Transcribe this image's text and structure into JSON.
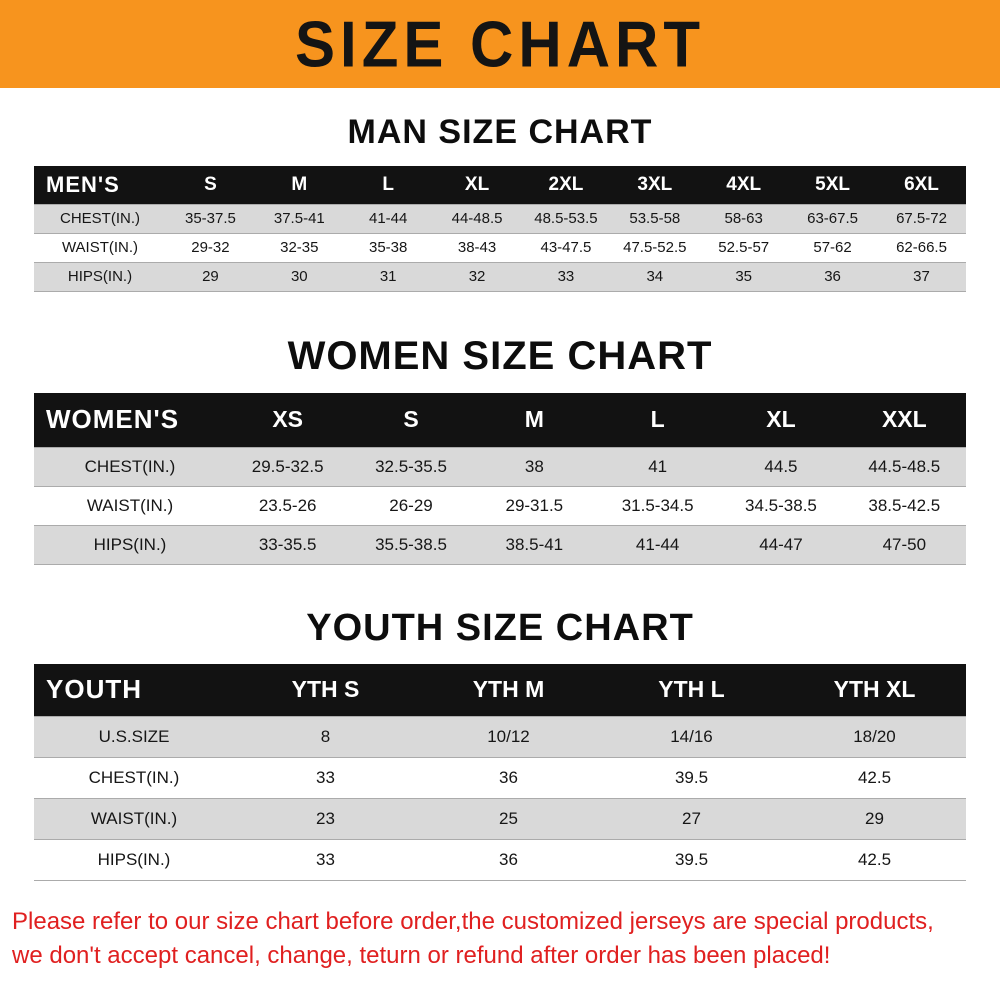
{
  "colors": {
    "banner-bg": "#F7941E",
    "header-bg": "#121212",
    "stripe": "#d9d9d9",
    "footer-red": "#e02020"
  },
  "banner": {
    "title": "SIZE CHART"
  },
  "chart_data": [
    {
      "type": "table",
      "title": "MAN SIZE CHART",
      "corner_label": "MEN'S",
      "columns": [
        "S",
        "M",
        "L",
        "XL",
        "2XL",
        "3XL",
        "4XL",
        "5XL",
        "6XL"
      ],
      "rows": [
        {
          "label": "CHEST(IN.)",
          "values": [
            "35-37.5",
            "37.5-41",
            "41-44",
            "44-48.5",
            "48.5-53.5",
            "53.5-58",
            "58-63",
            "63-67.5",
            "67.5-72"
          ]
        },
        {
          "label": "WAIST(IN.)",
          "values": [
            "29-32",
            "32-35",
            "35-38",
            "38-43",
            "43-47.5",
            "47.5-52.5",
            "52.5-57",
            "57-62",
            "62-66.5"
          ]
        },
        {
          "label": "HIPS(IN.)",
          "values": [
            "29",
            "30",
            "31",
            "32",
            "33",
            "34",
            "35",
            "36",
            "37"
          ]
        }
      ]
    },
    {
      "type": "table",
      "title": "WOMEN SIZE CHART",
      "corner_label": "WOMEN'S",
      "columns": [
        "XS",
        "S",
        "M",
        "L",
        "XL",
        "XXL"
      ],
      "rows": [
        {
          "label": "CHEST(IN.)",
          "values": [
            "29.5-32.5",
            "32.5-35.5",
            "38",
            "41",
            "44.5",
            "44.5-48.5"
          ]
        },
        {
          "label": "WAIST(IN.)",
          "values": [
            "23.5-26",
            "26-29",
            "29-31.5",
            "31.5-34.5",
            "34.5-38.5",
            "38.5-42.5"
          ]
        },
        {
          "label": "HIPS(IN.)",
          "values": [
            "33-35.5",
            "35.5-38.5",
            "38.5-41",
            "41-44",
            "44-47",
            "47-50"
          ]
        }
      ]
    },
    {
      "type": "table",
      "title": "YOUTH SIZE CHART",
      "corner_label": "YOUTH",
      "columns": [
        "YTH S",
        "YTH M",
        "YTH L",
        "YTH XL"
      ],
      "rows": [
        {
          "label": "U.S.SIZE",
          "values": [
            "8",
            "10/12",
            "14/16",
            "18/20"
          ]
        },
        {
          "label": "CHEST(IN.)",
          "values": [
            "33",
            "36",
            "39.5",
            "42.5"
          ]
        },
        {
          "label": "WAIST(IN.)",
          "values": [
            "23",
            "25",
            "27",
            "29"
          ]
        },
        {
          "label": "HIPS(IN.)",
          "values": [
            "33",
            "36",
            "39.5",
            "42.5"
          ]
        }
      ]
    }
  ],
  "footer": {
    "line1": "Please refer to our size chart before order,the customized jerseys are special products,",
    "line2": "we don't accept cancel, change, teturn or refund after order has been placed!"
  }
}
